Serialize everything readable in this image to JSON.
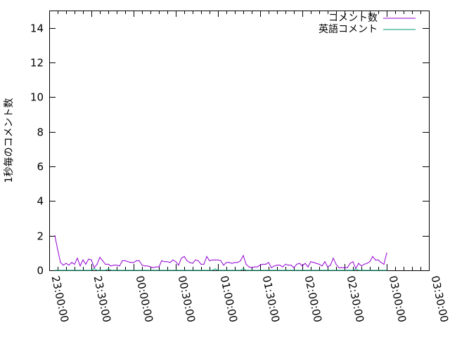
{
  "chart_data": {
    "type": "line",
    "title": "",
    "xlabel": "",
    "ylabel": "1秒毎のコメント数",
    "ylim": [
      0,
      15
    ],
    "xlim": [
      "23:00:00",
      "03:30:00"
    ],
    "yticks": [
      "0",
      "2",
      "4",
      "6",
      "8",
      "10",
      "12",
      "14"
    ],
    "xticks": [
      "23:00:00",
      "23:30:00",
      "00:00:00",
      "00:30:00",
      "01:00:00",
      "01:30:00",
      "02:00:00",
      "02:30:00",
      "03:00:00",
      "03:30:00"
    ],
    "grid": false,
    "legend_position": "top-right",
    "x": [
      "23:04",
      "23:06",
      "23:08",
      "23:10",
      "23:12",
      "23:14",
      "23:16",
      "23:18",
      "23:20",
      "23:22",
      "23:24",
      "23:26",
      "23:28",
      "23:30",
      "23:32",
      "23:34",
      "23:36",
      "23:38",
      "23:40",
      "23:42",
      "23:44",
      "23:46",
      "23:48",
      "23:50",
      "23:52",
      "23:54",
      "23:56",
      "23:58",
      "00:00",
      "00:02",
      "00:04",
      "00:06",
      "00:08",
      "00:10",
      "00:12",
      "00:14",
      "00:16",
      "00:18",
      "00:20",
      "00:22",
      "00:24",
      "00:26",
      "00:28",
      "00:30",
      "00:32",
      "00:34",
      "00:36",
      "00:38",
      "00:40",
      "00:42",
      "00:44",
      "00:46",
      "00:48",
      "00:50",
      "00:52",
      "00:54",
      "00:56",
      "00:58",
      "01:00",
      "01:02",
      "01:04",
      "01:06",
      "01:08",
      "01:10",
      "01:12",
      "01:14",
      "01:16",
      "01:18",
      "01:20",
      "01:22",
      "01:24",
      "01:26",
      "01:28",
      "01:30",
      "01:32",
      "01:34",
      "01:36",
      "01:38",
      "01:40",
      "01:42",
      "01:44",
      "01:46",
      "01:48",
      "01:50",
      "01:52",
      "01:54",
      "01:56",
      "01:58",
      "02:00",
      "02:02",
      "02:04",
      "02:06",
      "02:08",
      "02:10",
      "02:12",
      "02:14",
      "02:16",
      "02:18",
      "02:20",
      "02:22",
      "02:24",
      "02:26",
      "02:28",
      "02:30",
      "02:32",
      "02:34",
      "02:36",
      "02:38",
      "02:40",
      "02:42",
      "02:44",
      "02:46",
      "02:48",
      "02:50",
      "02:52",
      "02:54",
      "02:56",
      "02:58",
      "03:00"
    ],
    "series": [
      {
        "name": "コメント数",
        "color": "#9400d3",
        "values": [
          2.0,
          1.2,
          0.45,
          0.3,
          0.4,
          0.3,
          0.45,
          0.35,
          0.7,
          0.25,
          0.6,
          0.35,
          0.65,
          0.6,
          0.15,
          0.35,
          0.75,
          0.55,
          0.35,
          0.35,
          0.25,
          0.3,
          0.3,
          0.25,
          0.55,
          0.55,
          0.5,
          0.45,
          0.45,
          0.55,
          0.55,
          0.3,
          0.25,
          0.25,
          0.2,
          0.15,
          0.2,
          0.2,
          0.55,
          0.5,
          0.5,
          0.45,
          0.6,
          0.5,
          0.3,
          0.7,
          0.8,
          0.55,
          0.45,
          0.4,
          0.6,
          0.55,
          0.35,
          0.35,
          0.8,
          0.55,
          0.6,
          0.6,
          0.6,
          0.55,
          0.3,
          0.45,
          0.45,
          0.4,
          0.45,
          0.45,
          0.55,
          0.85,
          0.35,
          0.2,
          0.15,
          0.2,
          0.2,
          0.3,
          0.35,
          0.35,
          0.45,
          0.15,
          0.25,
          0.3,
          0.3,
          0.2,
          0.35,
          0.3,
          0.3,
          0.15,
          0.35,
          0.4,
          0.25,
          0.4,
          0.2,
          0.5,
          0.45,
          0.4,
          0.35,
          0.25,
          0.5,
          0.2,
          0.3,
          0.7,
          0.35,
          0.15,
          0.15,
          0.15,
          0.15,
          0.4,
          0.5,
          0.1,
          0.4,
          0.25,
          0.35,
          0.4,
          0.5,
          0.8,
          0.6,
          0.6,
          0.45,
          0.35,
          1.0
        ]
      },
      {
        "name": "英語コメント",
        "color": "#009e73",
        "values": [
          0,
          0,
          0,
          0,
          0,
          0,
          0,
          0,
          0,
          0,
          0,
          0,
          0,
          0,
          0.1,
          0,
          0,
          0,
          0,
          0.08,
          0,
          0,
          0,
          0,
          0,
          0,
          0,
          0,
          0,
          0,
          0,
          0,
          0,
          0,
          0,
          0,
          0,
          0,
          0,
          0,
          0,
          0,
          0,
          0,
          0,
          0,
          0,
          0,
          0,
          0,
          0,
          0,
          0,
          0,
          0,
          0,
          0,
          0.08,
          0,
          0,
          0,
          0,
          0,
          0,
          0,
          0,
          0,
          0.1,
          0,
          0,
          0,
          0,
          0,
          0,
          0,
          0,
          0,
          0,
          0,
          0,
          0,
          0,
          0,
          0,
          0,
          0,
          0,
          0,
          0,
          0,
          0,
          0,
          0,
          0,
          0,
          0,
          0,
          0,
          0,
          0,
          0,
          0,
          0,
          0,
          0,
          0,
          0,
          0.08,
          0,
          0,
          0,
          0,
          0,
          0,
          0,
          0,
          0,
          0,
          0
        ]
      }
    ]
  }
}
